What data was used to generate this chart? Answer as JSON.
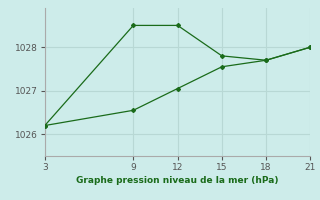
{
  "line1_x": [
    3,
    9,
    12,
    15,
    18,
    21
  ],
  "line1_y": [
    1026.2,
    1028.5,
    1028.5,
    1027.8,
    1027.7,
    1028.0
  ],
  "line2_x": [
    3,
    9,
    12,
    15,
    18,
    21
  ],
  "line2_y": [
    1026.2,
    1026.55,
    1027.05,
    1027.55,
    1027.7,
    1028.0
  ],
  "line_color": "#1a6b1a",
  "bg_color": "#cdecea",
  "grid_color": "#b8d8d5",
  "xlabel": "Graphe pression niveau de la mer (hPa)",
  "xlabel_color": "#1a6b1a",
  "tick_color": "#555555",
  "xticks": [
    3,
    9,
    12,
    15,
    18,
    21
  ],
  "yticks": [
    1026,
    1027,
    1028
  ],
  "ylim": [
    1025.5,
    1028.9
  ],
  "xlim": [
    3,
    21
  ]
}
